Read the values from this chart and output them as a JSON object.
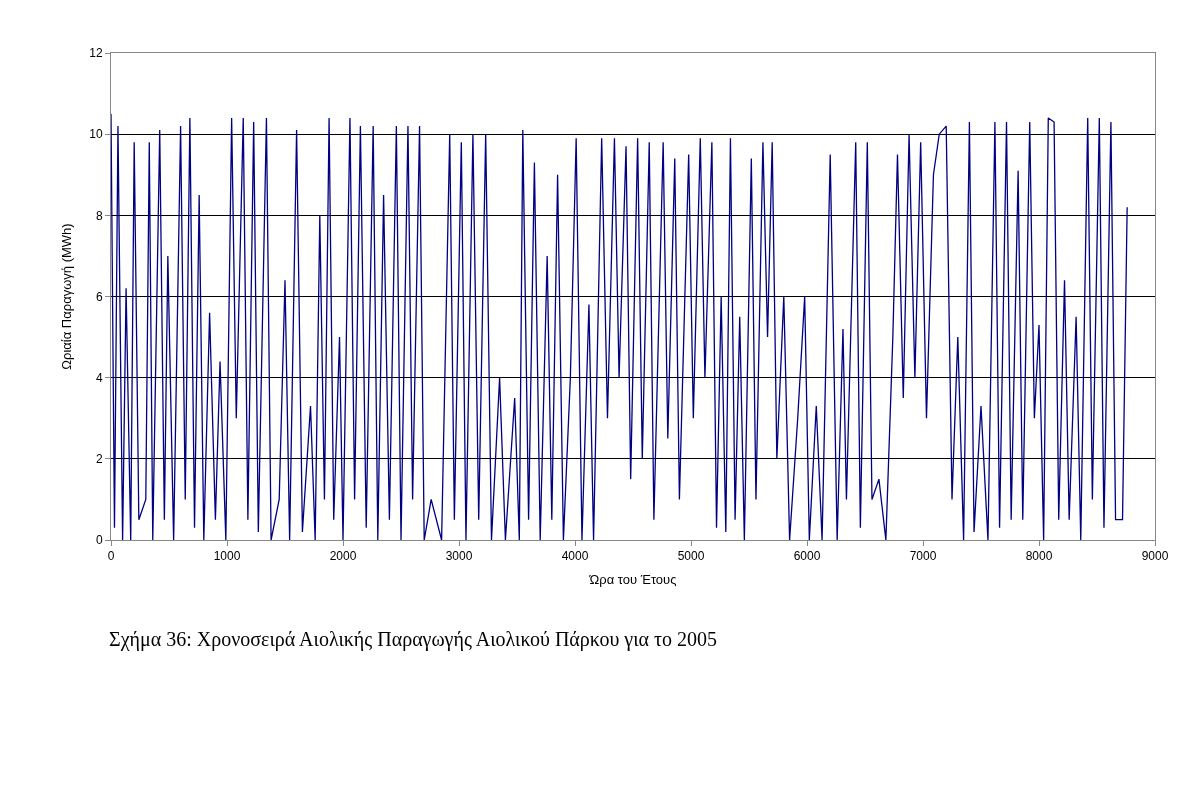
{
  "chart_data": {
    "type": "line",
    "xlabel": "Ώρα του Έτους",
    "ylabel": "Ωριαία Παραγωγή (MWh)",
    "annotations": [
      "Σχήμα 36: Χρονοσειρά Αιολικής Παραγωγής Αιολικού Πάρκου για το 2005"
    ],
    "xlim": [
      0,
      9000
    ],
    "xticks": [
      0,
      1000,
      2000,
      3000,
      4000,
      5000,
      6000,
      7000,
      8000,
      9000
    ],
    "ylim": [
      0,
      12
    ],
    "yticks": [
      0,
      2,
      4,
      6,
      8,
      10,
      12
    ],
    "grid": "y",
    "legend": false,
    "marker": "none",
    "line_style": "solid",
    "x": [
      0,
      30,
      60,
      100,
      130,
      170,
      200,
      240,
      300,
      330,
      360,
      420,
      460,
      490,
      540,
      600,
      640,
      680,
      720,
      760,
      800,
      850,
      900,
      940,
      990,
      1040,
      1080,
      1140,
      1180,
      1230,
      1270,
      1340,
      1380,
      1450,
      1500,
      1540,
      1600,
      1650,
      1720,
      1760,
      1800,
      1840,
      1880,
      1920,
      1970,
      2000,
      2060,
      2100,
      2150,
      2200,
      2260,
      2300,
      2350,
      2400,
      2460,
      2500,
      2560,
      2600,
      2660,
      2700,
      2760,
      2850,
      2920,
      2960,
      3020,
      3060,
      3120,
      3170,
      3230,
      3280,
      3350,
      3400,
      3480,
      3520,
      3550,
      3600,
      3650,
      3700,
      3760,
      3800,
      3850,
      3900,
      3960,
      4010,
      4060,
      4120,
      4160,
      4230,
      4280,
      4340,
      4380,
      4440,
      4480,
      4540,
      4580,
      4640,
      4680,
      4760,
      4800,
      4860,
      4900,
      4980,
      5020,
      5080,
      5120,
      5180,
      5220,
      5260,
      5300,
      5340,
      5380,
      5420,
      5460,
      5520,
      5560,
      5620,
      5660,
      5700,
      5740,
      5800,
      5850,
      5920,
      5980,
      6020,
      6080,
      6130,
      6200,
      6260,
      6310,
      6340,
      6420,
      6460,
      6520,
      6560,
      6620,
      6680,
      6740,
      6780,
      6830,
      6880,
      6930,
      6980,
      7030,
      7090,
      7140,
      7200,
      7250,
      7300,
      7350,
      7400,
      7440,
      7500,
      7560,
      7620,
      7660,
      7720,
      7760,
      7820,
      7860,
      7920,
      7960,
      8000,
      8040,
      8080,
      8130,
      8170,
      8220,
      8260,
      8320,
      8360,
      8420,
      8460,
      8520,
      8560,
      8620,
      8660,
      8720,
      8760
    ],
    "series": [
      {
        "color": "#000080",
        "values": [
          10.5,
          0.3,
          10.2,
          0,
          6.2,
          0,
          9.8,
          0.5,
          1,
          9.8,
          0,
          10.1,
          0.5,
          7,
          0,
          10.2,
          1,
          10.4,
          0.3,
          8.5,
          0,
          5.6,
          0.5,
          4.4,
          0,
          10.4,
          3,
          10.4,
          0.5,
          10.3,
          0.2,
          10.4,
          0,
          1,
          6.4,
          0,
          10.1,
          0.2,
          3.3,
          0,
          8,
          1,
          10.4,
          0.5,
          5,
          0,
          10.4,
          1,
          10.2,
          0.3,
          10.2,
          0,
          8.5,
          0.5,
          10.2,
          0,
          10.2,
          1,
          10.2,
          0,
          1,
          0,
          10,
          0.5,
          9.8,
          0,
          10,
          0.5,
          10,
          0,
          4,
          0,
          3.5,
          0,
          10.1,
          0.5,
          9.3,
          0,
          7,
          0.5,
          9,
          0,
          4,
          9.9,
          0,
          5.8,
          0,
          9.9,
          3,
          9.9,
          4,
          9.7,
          1.5,
          9.9,
          2,
          9.8,
          0.5,
          9.8,
          2.5,
          9.4,
          1,
          9.5,
          3,
          9.9,
          4,
          9.8,
          0.3,
          6,
          0.2,
          9.9,
          0.5,
          5.5,
          0,
          9.4,
          1,
          9.8,
          5,
          9.8,
          2,
          6,
          0,
          3,
          6,
          0,
          3.3,
          0,
          9.5,
          0,
          5.2,
          1,
          9.8,
          0.3,
          9.8,
          1,
          1.5,
          0,
          5,
          9.5,
          3.5,
          10,
          4,
          9.8,
          3,
          9,
          10,
          10.2,
          1,
          5,
          0,
          10.3,
          0.2,
          3.3,
          0,
          10.3,
          0.3,
          10.3,
          0.5,
          9.1,
          0.5,
          10.3,
          3,
          5.3,
          0,
          10.4,
          10.3,
          0.5,
          6.4,
          0.5,
          5.5,
          0,
          10.4,
          1,
          10.4,
          0.3,
          10.3,
          0.5,
          0.5,
          8.2
        ]
      }
    ]
  }
}
